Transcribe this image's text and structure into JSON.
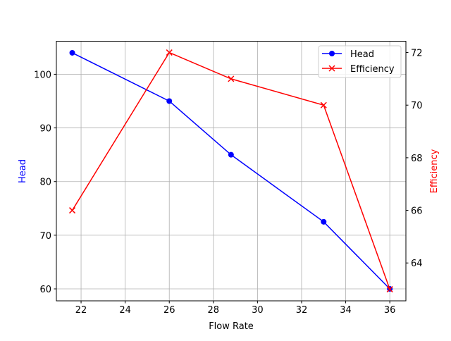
{
  "chart_data": {
    "type": "line",
    "title": "",
    "xlabel": "Flow Rate",
    "ylabel": "Head",
    "y2label": "Efficiency",
    "xlim": [
      20.88,
      36.73
    ],
    "ylim": [
      57.77,
      106.16
    ],
    "y2lim": [
      62.56,
      72.43
    ],
    "grid": true,
    "legend_placement": "top-right",
    "x_ticks": [
      22,
      24,
      26,
      28,
      30,
      32,
      34,
      36
    ],
    "y_ticks": [
      60,
      70,
      80,
      90,
      100
    ],
    "y2_ticks": [
      64,
      66,
      68,
      70,
      72
    ],
    "x": [
      21.6,
      26,
      28.8,
      33,
      36
    ],
    "series": [
      {
        "name": "Head",
        "axis": "left",
        "color": "#0000ff",
        "marker": "circle",
        "values": [
          104,
          95,
          85,
          72.5,
          60
        ]
      },
      {
        "name": "Efficiency",
        "axis": "right",
        "color": "#ff0000",
        "marker": "x",
        "values": [
          66,
          72,
          71,
          70,
          63
        ]
      }
    ]
  }
}
